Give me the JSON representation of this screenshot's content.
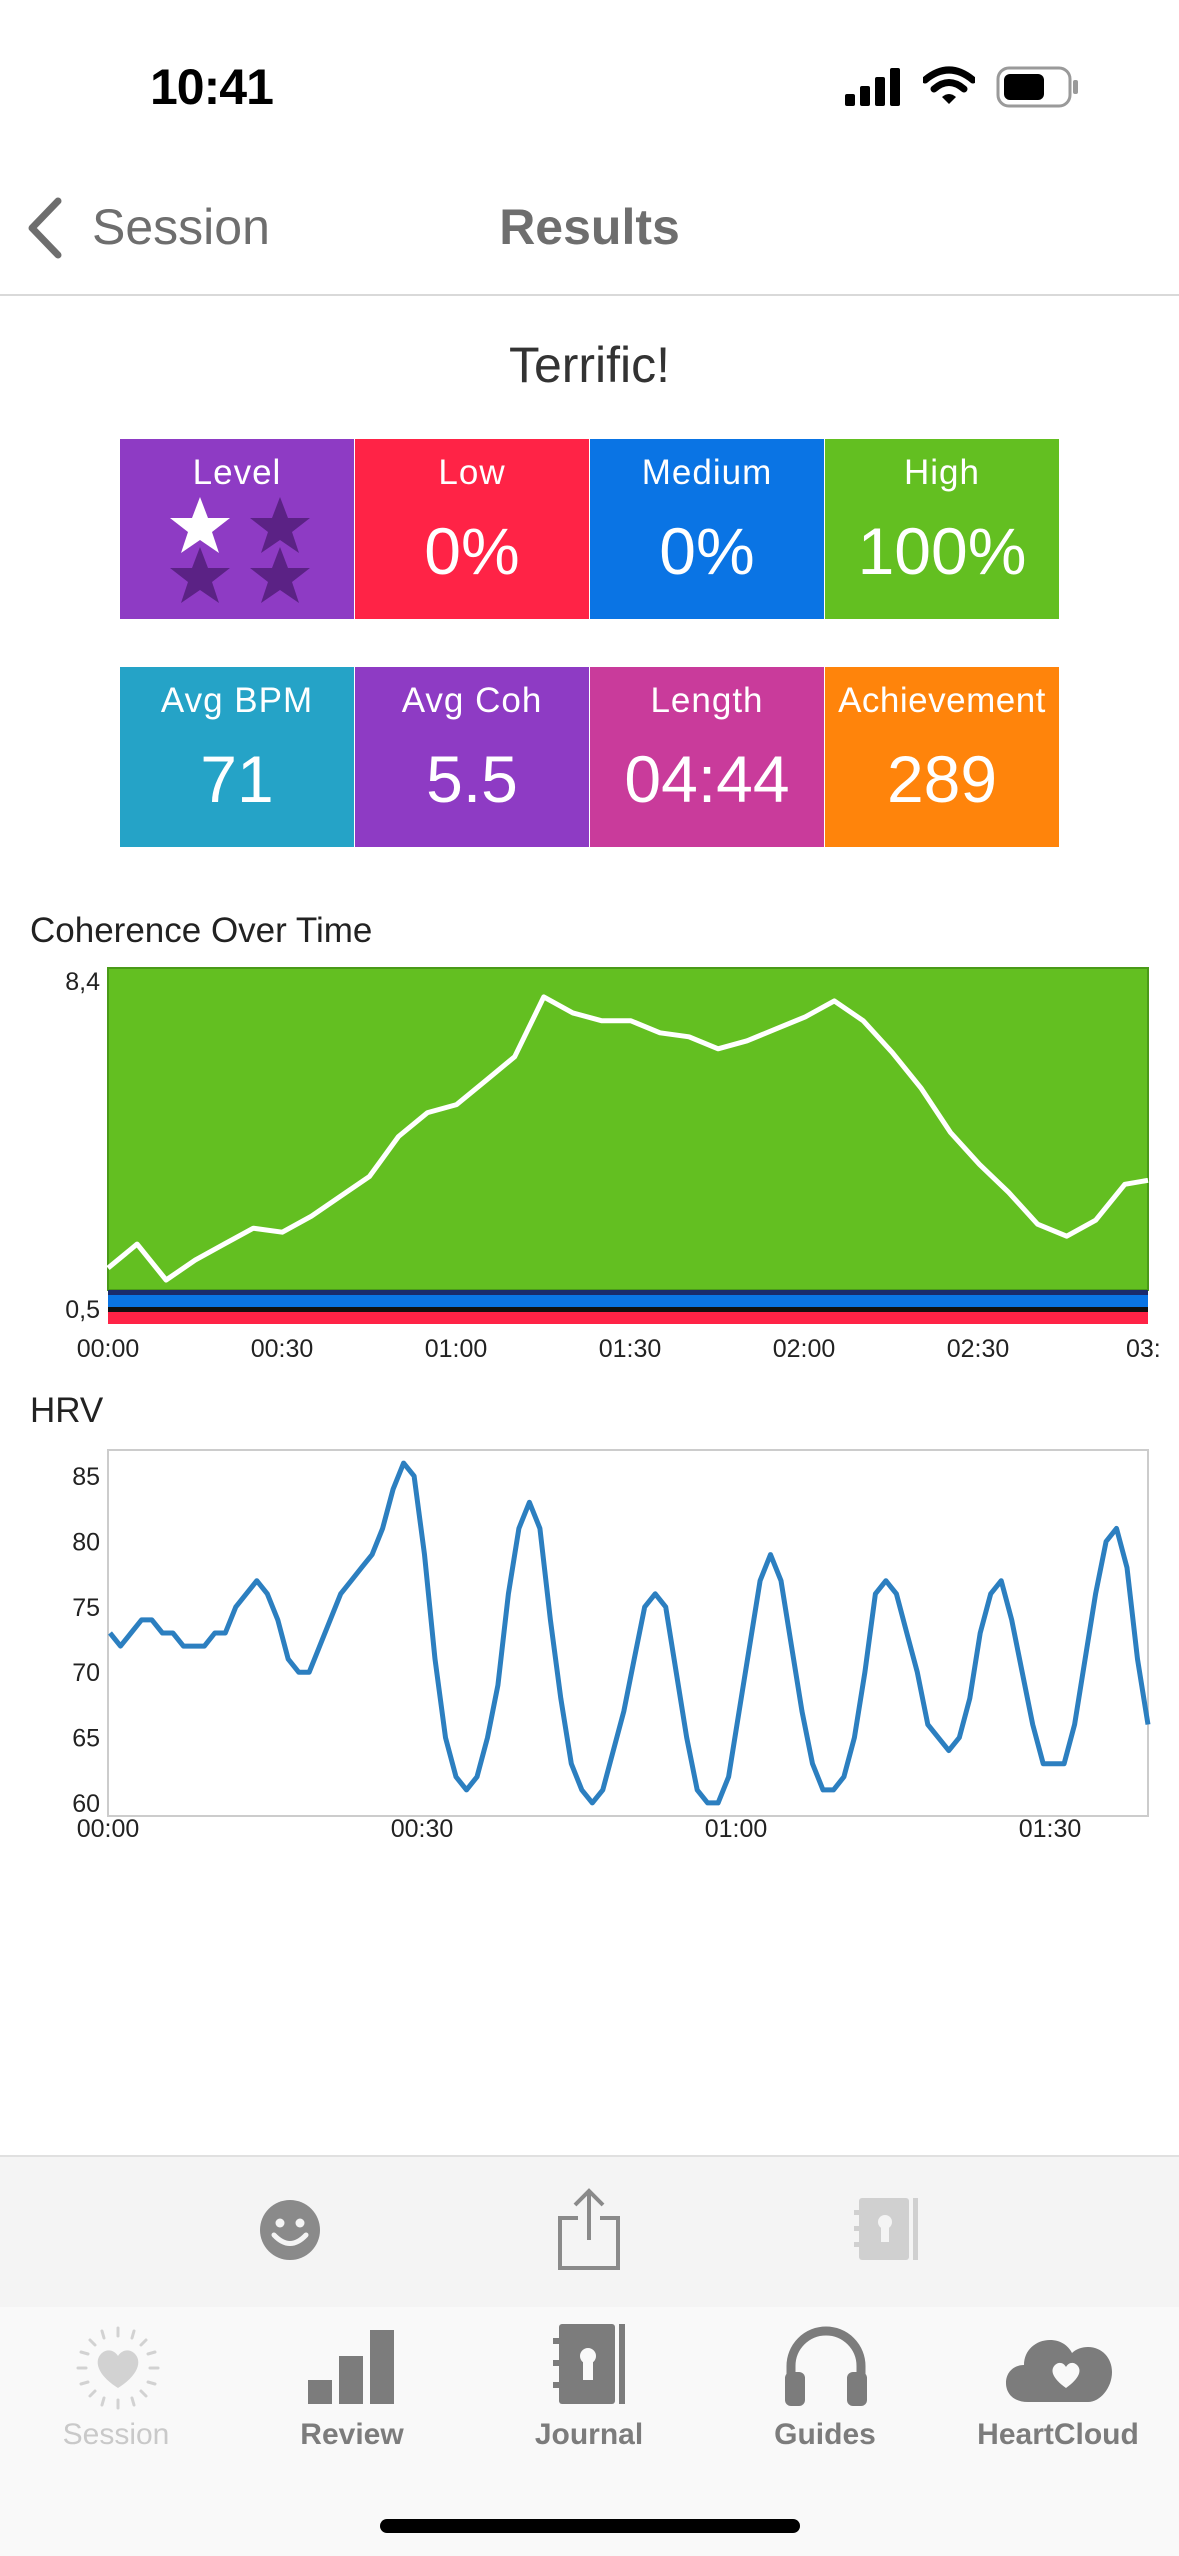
{
  "status_bar": {
    "time": "10:41"
  },
  "nav": {
    "back_label": "Session",
    "title": "Results"
  },
  "rating": "Terrific!",
  "stats_row1": {
    "level": {
      "label": "Level",
      "stars_filled": 1,
      "stars_total": 4,
      "color": "#8e3bc4"
    },
    "low": {
      "label": "Low",
      "value": "0%",
      "color": "#ff2346"
    },
    "medium": {
      "label": "Medium",
      "value": "0%",
      "color": "#0a74e4"
    },
    "high": {
      "label": "High",
      "value": "100%",
      "color": "#63bf21"
    }
  },
  "stats_row2": {
    "avg_bpm": {
      "label": "Avg BPM",
      "value": "71",
      "color": "#25a3c7"
    },
    "avg_coh": {
      "label": "Avg Coh",
      "value": "5.5",
      "color": "#8e3bc4"
    },
    "length": {
      "label": "Length",
      "value": "04:44",
      "color": "#c93b9b"
    },
    "achievement": {
      "label": "Achievement",
      "value": "289",
      "color": "#ff840b"
    }
  },
  "chart_data": [
    {
      "type": "line",
      "title": "Coherence Over Time",
      "y_tick_labels": [
        "8,4",
        "0,5"
      ],
      "x_tick_labels": [
        "00:00",
        "00:30",
        "01:00",
        "01:30",
        "02:00",
        "02:30",
        "03:"
      ],
      "ylim": [
        0.5,
        8.4
      ],
      "x_unit": "minutes",
      "xlim": [
        0,
        179
      ],
      "zones": {
        "high": "#63bf21",
        "medium": "#0a74e4",
        "low": "#ff2346"
      },
      "line_color": "#ffffff",
      "series": [
        {
          "x": [
            0,
            5,
            10,
            15,
            20,
            25,
            30,
            35,
            40,
            45,
            50,
            55,
            60,
            65,
            70,
            75,
            80,
            85,
            90,
            95,
            100,
            105,
            110,
            115,
            120,
            125,
            130,
            135,
            140,
            145,
            150,
            155,
            160,
            165,
            170,
            175,
            179
          ],
          "values": [
            1.0,
            1.6,
            0.7,
            1.2,
            1.6,
            2.0,
            1.9,
            2.3,
            2.8,
            3.3,
            4.3,
            4.9,
            5.1,
            5.7,
            6.3,
            7.8,
            7.4,
            7.2,
            7.2,
            6.9,
            6.8,
            6.5,
            6.7,
            7.0,
            7.3,
            7.7,
            7.2,
            6.4,
            5.5,
            4.4,
            3.6,
            2.9,
            2.1,
            1.8,
            2.2,
            3.1,
            3.2
          ]
        }
      ]
    },
    {
      "type": "line",
      "title": "HRV",
      "y_ticks": [
        85,
        80,
        75,
        70,
        65,
        60
      ],
      "ylim": [
        59,
        87
      ],
      "x_tick_labels": [
        "00:00",
        "00:30",
        "01:00",
        "01:30"
      ],
      "x_unit": "minutes",
      "xlim": [
        0,
        99
      ],
      "line_color": "#2c7fc0",
      "series": [
        {
          "x": [
            0,
            1,
            2,
            3,
            4,
            5,
            6,
            7,
            8,
            9,
            10,
            11,
            12,
            13,
            14,
            15,
            16,
            17,
            18,
            19,
            20,
            21,
            22,
            23,
            24,
            25,
            26,
            27,
            28,
            29,
            30,
            31,
            32,
            33,
            34,
            35,
            36,
            37,
            38,
            39,
            40,
            41,
            42,
            43,
            44,
            45,
            46,
            47,
            48,
            49,
            50,
            51,
            52,
            53,
            54,
            55,
            56,
            57,
            58,
            59,
            60,
            61,
            62,
            63,
            64,
            65,
            66,
            67,
            68,
            69,
            70,
            71,
            72,
            73,
            74,
            75,
            76,
            77,
            78,
            79,
            80,
            81,
            82,
            83,
            84,
            85,
            86,
            87,
            88,
            89,
            90,
            91,
            92,
            93,
            94,
            95,
            96,
            97,
            98,
            99
          ],
          "values": [
            73,
            72,
            73,
            74,
            74,
            73,
            73,
            72,
            72,
            72,
            73,
            73,
            75,
            76,
            77,
            76,
            74,
            71,
            70,
            70,
            72,
            74,
            76,
            77,
            78,
            79,
            81,
            84,
            86,
            85,
            79,
            71,
            65,
            62,
            61,
            62,
            65,
            69,
            76,
            81,
            83,
            81,
            74,
            68,
            63,
            61,
            60,
            61,
            64,
            67,
            71,
            75,
            76,
            75,
            70,
            65,
            61,
            60,
            60,
            62,
            67,
            72,
            77,
            79,
            77,
            72,
            67,
            63,
            61,
            61,
            62,
            65,
            70,
            76,
            77,
            76,
            73,
            70,
            66,
            65,
            64,
            65,
            68,
            73,
            76,
            77,
            74,
            70,
            66,
            63,
            63,
            63,
            66,
            71,
            76,
            80,
            81,
            78,
            71,
            66
          ]
        }
      ]
    }
  ],
  "toolbar": {
    "icons": [
      "smiley-icon",
      "share-icon",
      "journal-icon"
    ]
  },
  "tabbar": {
    "session": "Session",
    "review": "Review",
    "journal": "Journal",
    "guides": "Guides",
    "heartcloud": "HeartCloud"
  }
}
